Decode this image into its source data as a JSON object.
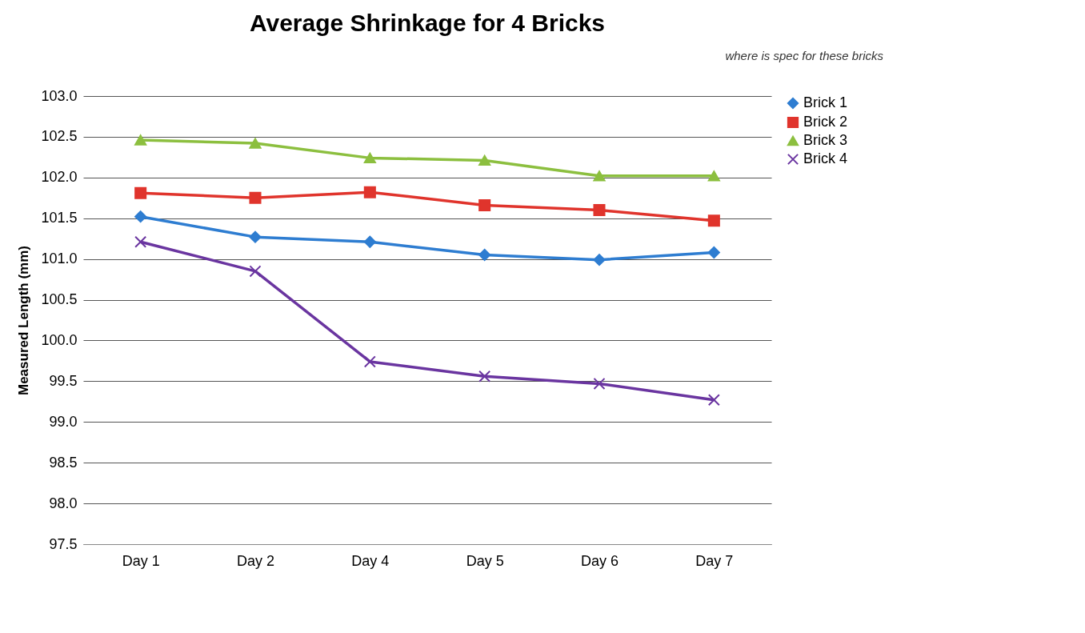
{
  "chart_data": {
    "type": "line",
    "title": "Average Shrinkage for 4 Bricks",
    "ylabel": "Measured Length (mm)",
    "categories": [
      "Day 1",
      "Day 2",
      "Day 4",
      "Day 5",
      "Day 6",
      "Day 7"
    ],
    "series": [
      {
        "name": "Brick 1",
        "color": "#2e7dd1",
        "marker": "diamond",
        "values": [
          101.52,
          101.27,
          101.21,
          101.05,
          100.99,
          101.08
        ]
      },
      {
        "name": "Brick 2",
        "color": "#e0342c",
        "marker": "square",
        "values": [
          101.81,
          101.75,
          101.82,
          101.66,
          101.6,
          101.47
        ]
      },
      {
        "name": "Brick 3",
        "color": "#8cbf3f",
        "marker": "triangle",
        "values": [
          102.46,
          102.42,
          102.24,
          102.21,
          102.02,
          102.02
        ]
      },
      {
        "name": "Brick 4",
        "color": "#6a35a0",
        "marker": "cross",
        "values": [
          101.21,
          100.85,
          99.74,
          99.56,
          99.47,
          99.27
        ]
      }
    ],
    "ylim": [
      97.5,
      103.0
    ],
    "yticks": [
      97.5,
      {
        "value": 98,
        "label": "98.0"
      },
      98.5,
      {
        "value": 99,
        "label": "99.0"
      },
      99.5,
      {
        "value": 100,
        "label": "100.0"
      },
      100.5,
      {
        "value": 101,
        "label": "101.0"
      },
      101.5,
      {
        "value": 102,
        "label": "102.0"
      },
      102.5,
      {
        "value": 103,
        "label": "103.0"
      }
    ],
    "grid": "y",
    "legend": "right",
    "annotations": [
      "where is spec for these bricks"
    ]
  }
}
